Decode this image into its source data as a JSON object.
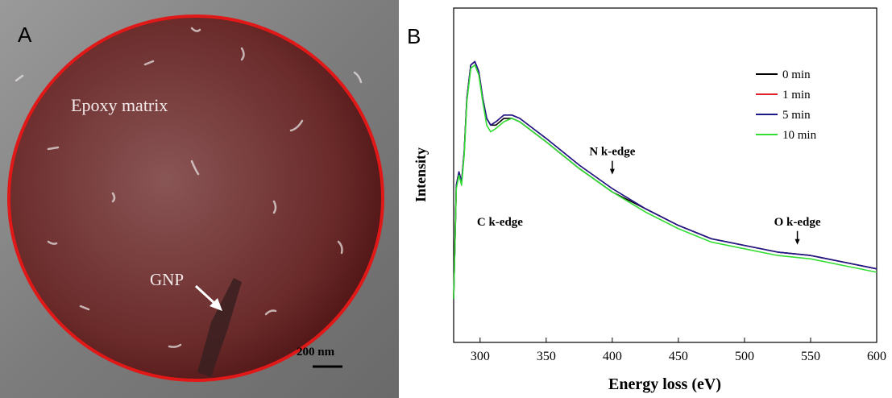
{
  "panel_a": {
    "label": "A",
    "annotations": [
      "Epoxy matrix",
      "GNP"
    ],
    "scale_bar": "200 nm"
  },
  "chart_data": {
    "type": "line",
    "panel_label": "B",
    "x_label": "Energy loss (eV)",
    "y_label": "Intensity",
    "xlim": [
      280,
      600
    ],
    "xticks": [
      300,
      350,
      400,
      450,
      500,
      550,
      600
    ],
    "ylim": [
      0,
      100
    ],
    "x": [
      280,
      282,
      284,
      286,
      288,
      290,
      293,
      296,
      299,
      302,
      305,
      308,
      312,
      318,
      324,
      330,
      340,
      350,
      375,
      400,
      425,
      450,
      475,
      500,
      525,
      550,
      575,
      600
    ],
    "series": [
      {
        "name": "0 min",
        "color": "#000000",
        "values": [
          13,
          47,
          51,
          48,
          57,
          73,
          83,
          84,
          81,
          73,
          67,
          65,
          65,
          67,
          67,
          66,
          63,
          60,
          52,
          45,
          40,
          35,
          31,
          29,
          27,
          26,
          24,
          22
        ]
      },
      {
        "name": "1 min",
        "color": "#e0202a",
        "values": [
          13,
          47,
          51,
          48,
          57,
          73,
          83,
          84,
          81,
          73,
          67,
          65,
          66,
          68,
          68,
          67,
          64,
          61,
          53,
          46,
          40,
          35,
          31,
          29,
          27,
          26,
          24,
          22
        ]
      },
      {
        "name": "5 min",
        "color": "#1a1a8c",
        "values": [
          13,
          47,
          51,
          48,
          57,
          73,
          83,
          84,
          81,
          73,
          67,
          65,
          66,
          68,
          68,
          67,
          64,
          61,
          53,
          46,
          40,
          35,
          31,
          29,
          27,
          26,
          24,
          22
        ]
      },
      {
        "name": "10 min",
        "color": "#33dd33",
        "values": [
          13,
          46,
          50,
          47,
          56,
          72,
          82,
          83,
          80,
          72,
          65,
          63,
          64,
          66,
          67,
          66,
          63,
          60,
          52,
          45,
          39,
          34,
          30,
          28,
          26,
          25,
          23,
          21
        ]
      }
    ],
    "annotations": [
      {
        "text": "C k-edge",
        "x": 315,
        "y": 35,
        "arrow": false
      },
      {
        "text": "N k-edge",
        "x": 400,
        "y": 56,
        "arrow": true
      },
      {
        "text": "O k-edge",
        "x": 540,
        "y": 35,
        "arrow": true
      }
    ],
    "legend": "upper right"
  }
}
